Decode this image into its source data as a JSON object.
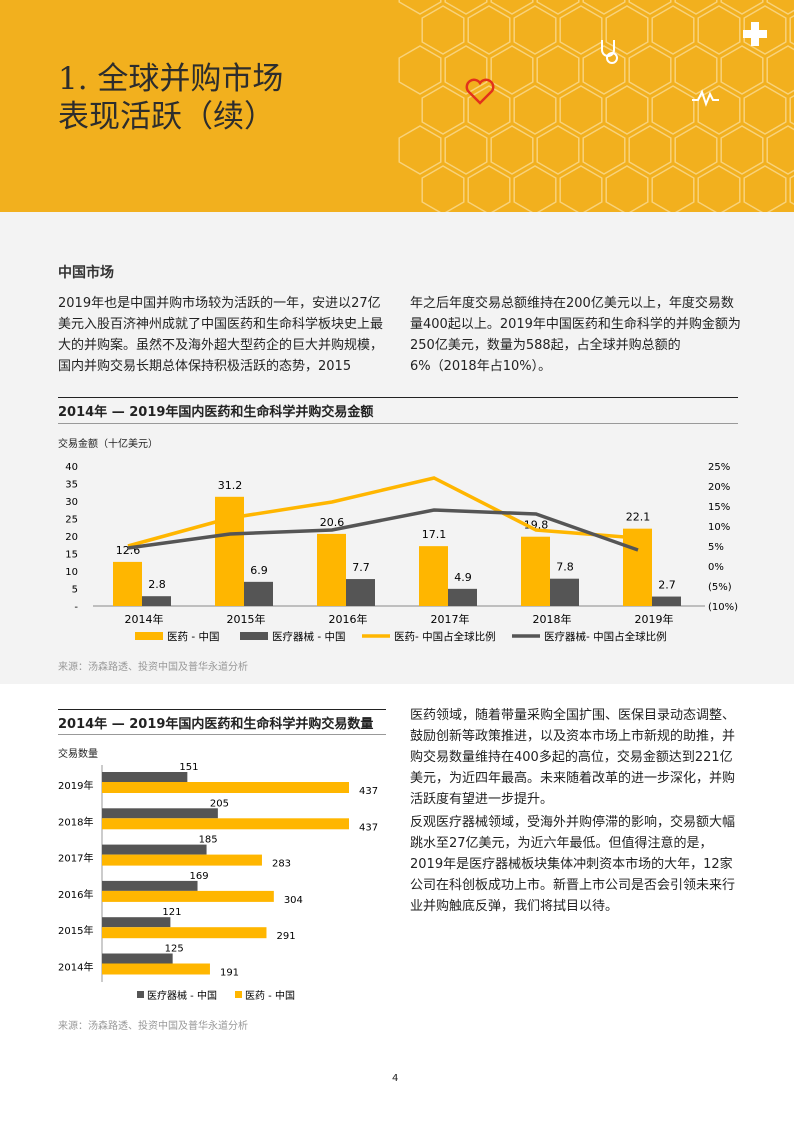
{
  "header": {
    "title_line1": "1. 全球并购市场",
    "title_line2": "表现活跃（续）"
  },
  "section": {
    "heading": "中国市场",
    "para_left": "2019年也是中国并购市场较为活跃的一年，安进以27亿美元入股百济神州成就了中国医药和生命科学板块史上最大的并购案。虽然不及海外超大型药企的巨大并购规模，国内并购交易长期总体保持积极活跃的态势，2015",
    "para_right": "年之后年度交易总额维持在200亿美元以上，年度交易数量400起以上。2019年中国医药和生命科学的并购金额为250亿美元，数量为588起，占全球并购总额的6%（2018年占10%）。"
  },
  "chart_data": [
    {
      "type": "bar",
      "title": "2014年 — 2019年国内医药和生命科学并购交易金额",
      "ylabel": "交易金额（十亿美元）",
      "categories": [
        "2014年",
        "2015年",
        "2016年",
        "2017年",
        "2018年",
        "2019年"
      ],
      "ylim": [
        0,
        40
      ],
      "yticks": [
        "-",
        "5",
        "10",
        "15",
        "20",
        "25",
        "30",
        "35",
        "40"
      ],
      "y2lim": [
        -10,
        25
      ],
      "y2ticks": [
        "(10%)",
        "(5%)",
        "0%",
        "5%",
        "10%",
        "15%",
        "20%",
        "25%"
      ],
      "series": [
        {
          "name": "医药 - 中国",
          "kind": "bar",
          "color": "#ffb600",
          "values": [
            12.6,
            31.2,
            20.6,
            17.1,
            19.8,
            22.1
          ]
        },
        {
          "name": "医疗器械 - 中国",
          "kind": "bar",
          "color": "#555555",
          "values": [
            2.8,
            6.9,
            7.7,
            4.9,
            7.8,
            2.7
          ]
        },
        {
          "name": "医药- 中国占全球比例",
          "kind": "line",
          "color": "#ffb600",
          "values": [
            5,
            12,
            16,
            22,
            9,
            7
          ]
        },
        {
          "name": "医疗器械- 中国占全球比例",
          "kind": "line",
          "color": "#555555",
          "values": [
            4.5,
            8,
            9,
            14,
            13,
            4
          ]
        }
      ],
      "legend": "bottom",
      "source": "来源：汤森路透、投资中国及普华永道分析"
    },
    {
      "type": "bar",
      "orientation": "horizontal",
      "title": "2014年 — 2019年国内医药和生命科学并购交易数量",
      "ylabel": "交易数量",
      "categories": [
        "2019年",
        "2018年",
        "2017年",
        "2016年",
        "2015年",
        "2014年"
      ],
      "series": [
        {
          "name": "医疗器械 - 中国",
          "color": "#555555",
          "values": [
            151,
            205,
            185,
            169,
            121,
            125
          ]
        },
        {
          "name": "医药 - 中国",
          "color": "#ffb600",
          "values": [
            437,
            437,
            283,
            304,
            291,
            191
          ]
        }
      ],
      "xlim": [
        0,
        437
      ],
      "legend": "bottom",
      "source": "来源：汤森路透、投资中国及普华永道分析"
    }
  ],
  "right_text": {
    "p1": "医药领域，随着带量采购全国扩围、医保目录动态调整、鼓励创新等政策推进，以及资本市场上市新规的助推，并购交易数量维持在400多起的高位，交易金额达到221亿美元，为近四年最高。未来随着改革的进一步深化，并购活跃度有望进一步提升。",
    "p2": "反观医疗器械领域，受海外并购停滞的影响，交易额大幅跳水至27亿美元，为近六年最低。但值得注意的是，2019年是医疗器械板块集体冲刺资本市场的大年，12家公司在科创板成功上市。新晋上市公司是否会引领未来行业并购触底反弹，我们将拭目以待。"
  },
  "page_number": "4"
}
